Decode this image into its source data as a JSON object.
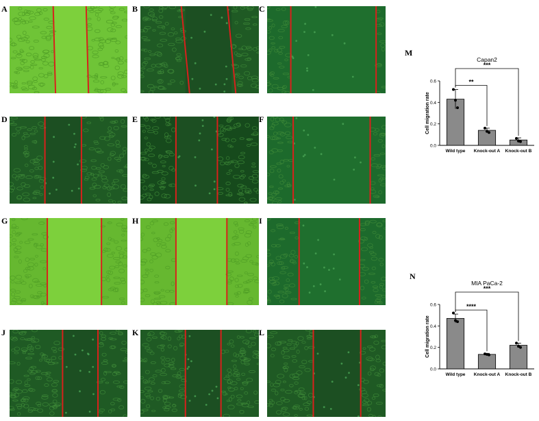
{
  "panels": [
    {
      "label": "A",
      "bg": "#6fc437",
      "gap": [
        0.38,
        0.66
      ],
      "tilt": 0.02
    },
    {
      "label": "B",
      "bg": "#1f5a24",
      "gap": [
        0.38,
        0.77
      ],
      "tilt": 0.07
    },
    {
      "label": "C",
      "bg": "#1d6a2c",
      "gap": [
        0.2,
        0.92
      ],
      "tilt": 0.0
    },
    {
      "label": "D",
      "bg": "#1f5a24",
      "gap": [
        0.3,
        0.61
      ],
      "tilt": 0.0
    },
    {
      "label": "E",
      "bg": "#164a1c",
      "gap": [
        0.3,
        0.65
      ],
      "tilt": 0.0
    },
    {
      "label": "F",
      "bg": "#1d6a2c",
      "gap": [
        0.22,
        0.87
      ],
      "tilt": 0.0
    },
    {
      "label": "G",
      "bg": "#66b830",
      "gap": [
        0.32,
        0.78
      ],
      "tilt": 0.0
    },
    {
      "label": "H",
      "bg": "#66b830",
      "gap": [
        0.3,
        0.73
      ],
      "tilt": 0.0
    },
    {
      "label": "I",
      "bg": "#1d6a2c",
      "gap": [
        0.27,
        0.78
      ],
      "tilt": 0.0
    },
    {
      "label": "J",
      "bg": "#1f5a24",
      "gap": [
        0.45,
        0.75
      ],
      "tilt": 0.0
    },
    {
      "label": "K",
      "bg": "#1f5a24",
      "gap": [
        0.38,
        0.68
      ],
      "tilt": 0.0
    },
    {
      "label": "L",
      "bg": "#1f5a24",
      "gap": [
        0.39,
        0.79
      ],
      "tilt": 0.0
    }
  ],
  "chart_data": [
    {
      "panel_label": "M",
      "type": "bar",
      "title": "Capan2",
      "ylabel": "Cell migration rate",
      "categories": [
        "Wild type",
        "Knock-out A",
        "Knock-out B"
      ],
      "values": [
        0.43,
        0.14,
        0.05
      ],
      "errors": [
        0.09,
        0.02,
        0.02
      ],
      "points": [
        [
          0.52,
          0.42,
          0.35
        ],
        [
          0.16,
          0.13,
          0.12
        ],
        [
          0.065,
          0.04,
          0.035
        ]
      ],
      "ylim": [
        0,
        0.6
      ],
      "yticks": [
        "0.0",
        "0.2",
        "0.4",
        "0.6"
      ],
      "significance": [
        {
          "from": 0,
          "to": 1,
          "label": "**"
        },
        {
          "from": 0,
          "to": 2,
          "label": "***"
        }
      ],
      "bar_color": "#8a8a8a"
    },
    {
      "panel_label": "N",
      "type": "bar",
      "title": "MIA PaCa-2",
      "ylabel": "Cell migration rate",
      "categories": [
        "Wild type",
        "Knock-out A",
        "Knock-out B"
      ],
      "values": [
        0.47,
        0.135,
        0.22
      ],
      "errors": [
        0.04,
        0.01,
        0.02
      ],
      "points": [
        [
          0.52,
          0.45,
          0.44
        ],
        [
          0.14,
          0.135,
          0.13
        ],
        [
          0.24,
          0.21,
          0.2
        ]
      ],
      "ylim": [
        0,
        0.6
      ],
      "yticks": [
        "0.0",
        "0.2",
        "0.4",
        "0.6"
      ],
      "significance": [
        {
          "from": 0,
          "to": 1,
          "label": "****"
        },
        {
          "from": 0,
          "to": 2,
          "label": "***"
        }
      ],
      "bar_color": "#8a8a8a"
    }
  ]
}
